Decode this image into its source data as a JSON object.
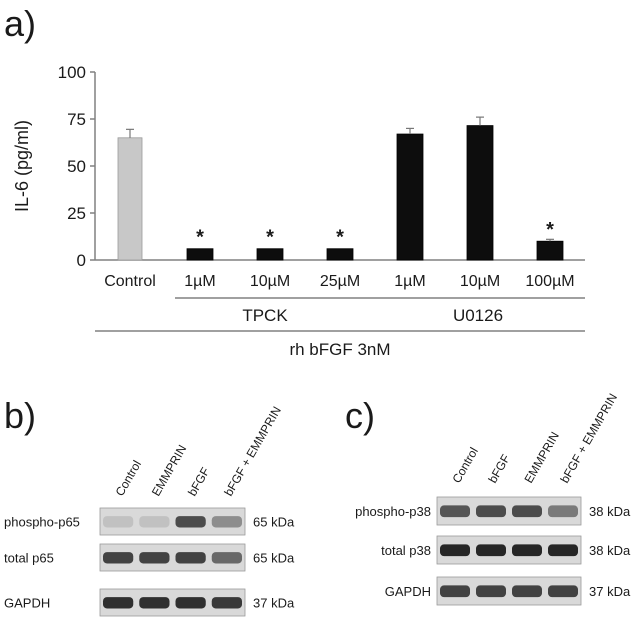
{
  "panel_labels": {
    "a": "a)",
    "b": "b)",
    "c": "c)"
  },
  "chart_data": {
    "type": "bar",
    "title": "",
    "xlabel": "",
    "ylabel": "IL-6 (pg/ml)",
    "ylim": [
      0,
      100
    ],
    "yticks": [
      0,
      25,
      50,
      75,
      100
    ],
    "grid": false,
    "categories": [
      "Control",
      "1µM",
      "10µM",
      "25µM",
      "1µM",
      "10µM",
      "100µM"
    ],
    "values": [
      65,
      6,
      6,
      6,
      67,
      71.5,
      10
    ],
    "errors": [
      4.5,
      0,
      0,
      0,
      3,
      4.5,
      1
    ],
    "bar_colors": [
      "#c8c8c8",
      "#0d0d0d",
      "#0d0d0d",
      "#0d0d0d",
      "#0d0d0d",
      "#0d0d0d",
      "#0d0d0d"
    ],
    "significance": [
      "",
      "*",
      "*",
      "*",
      "",
      "",
      "*"
    ],
    "groups": [
      {
        "label": "TPCK",
        "from": 1,
        "to": 3
      },
      {
        "label": "U0126",
        "from": 4,
        "to": 6
      }
    ],
    "treatment_label": "rh bFGF 3nM"
  },
  "blot_b": {
    "lanes": [
      "Control",
      "EMMPRIN",
      "bFGF",
      "bFGF + EMMPRIN"
    ],
    "rows": [
      {
        "label": "phospho-p65",
        "size": "65 kDa",
        "intensity": [
          0.12,
          0.12,
          0.75,
          0.4
        ]
      },
      {
        "label": "total p65",
        "size": "65 kDa",
        "intensity": [
          0.8,
          0.8,
          0.8,
          0.6
        ]
      },
      {
        "label": "GAPDH",
        "size": "37 kDa",
        "intensity": [
          0.9,
          0.9,
          0.9,
          0.85
        ]
      }
    ]
  },
  "blot_c": {
    "lanes": [
      "Control",
      "bFGF",
      "EMMPRIN",
      "bFGF + EMMPRIN"
    ],
    "rows": [
      {
        "label": "phospho-p38",
        "size": "38 kDa",
        "intensity": [
          0.7,
          0.75,
          0.75,
          0.5
        ]
      },
      {
        "label": "total p38",
        "size": "38 kDa",
        "intensity": [
          0.95,
          0.95,
          0.95,
          0.95
        ]
      },
      {
        "label": "GAPDH",
        "size": "37 kDa",
        "intensity": [
          0.8,
          0.8,
          0.8,
          0.8
        ]
      }
    ]
  },
  "colors": {
    "axis": "#808080",
    "text": "#1a1a1a",
    "band": "#1c1c1c",
    "membrane": "#d9d9d9"
  }
}
